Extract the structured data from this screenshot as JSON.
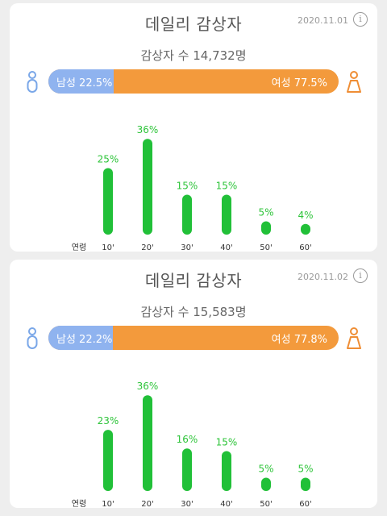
{
  "cards": [
    {
      "title": "데일리 감상자",
      "date": "2020.11.01",
      "viewers_text": "감상자 수 14,732명",
      "male_label": "남성 22.5%",
      "female_label": "여성 77.5%",
      "male_fraction": 0.225,
      "axis_name": "연령",
      "chart_data": {
        "type": "bar",
        "categories": [
          "10'",
          "20'",
          "30'",
          "40'",
          "50'",
          "60'"
        ],
        "values": [
          25,
          36,
          15,
          15,
          5,
          4
        ],
        "labels": [
          "25%",
          "36%",
          "15%",
          "15%",
          "5%",
          "4%"
        ],
        "bar_color": "#21c038"
      }
    },
    {
      "title": "데일리 감상자",
      "date": "2020.11.02",
      "viewers_text": "감상자 수 15,583명",
      "male_label": "남성 22.2%",
      "female_label": "여성 77.8%",
      "male_fraction": 0.222,
      "axis_name": "연령",
      "chart_data": {
        "type": "bar",
        "categories": [
          "10'",
          "20'",
          "30'",
          "40'",
          "50'",
          "60'"
        ],
        "values": [
          23,
          36,
          16,
          15,
          5,
          5
        ],
        "labels": [
          "23%",
          "36%",
          "16%",
          "15%",
          "5%",
          "5%"
        ],
        "bar_color": "#21c038"
      }
    }
  ],
  "colors": {
    "male": "#8fb3ef",
    "female": "#f39a3c",
    "male_icon": "#7aa7e8",
    "female_icon": "#ef8e35"
  },
  "icons": {
    "info": "info-icon",
    "male": "male-person-icon",
    "female": "female-person-icon"
  }
}
